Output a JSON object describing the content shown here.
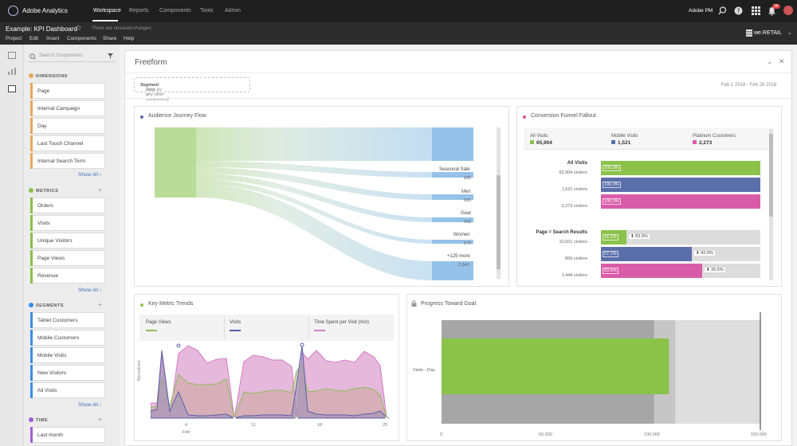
{
  "topnav": {
    "brand": "Adobe Analytics",
    "items": [
      "Workspace",
      "Reports",
      "Components",
      "Tools",
      "Admin"
    ],
    "user": "Adobe PM",
    "notif_count": "36"
  },
  "project": {
    "title": "Example: KPI Dashboard",
    "unsaved": "There are unsaved changes",
    "menu": [
      "Project",
      "Edit",
      "Insert",
      "Components",
      "Share",
      "Help"
    ],
    "report_suite": "we.RETAIL"
  },
  "search": {
    "placeholder": "Search Components"
  },
  "dimensions": {
    "title": "DIMENSIONS",
    "items": [
      "Page",
      "Internal Campaign",
      "Day",
      "Last Touch Channel",
      "Internal Search Term"
    ],
    "show_all": "Show All"
  },
  "metrics": {
    "title": "METRICS",
    "items": [
      "Orders",
      "Visits",
      "Unique Visitors",
      "Page Views",
      "Revenue"
    ],
    "show_all": "Show All"
  },
  "segments": {
    "title": "SEGMENTS",
    "items": [
      "Tablet Customers",
      "Mobile Customers",
      "Mobile Visits",
      "New Visitors",
      "All Visits"
    ],
    "show_all": "Show All"
  },
  "time": {
    "title": "TIME",
    "items": [
      "Last month"
    ]
  },
  "freeform": {
    "title": "Freeform",
    "drop_prefix": "Drop a ",
    "drop_bold": "Segment",
    "drop_suffix": " Here (or any other component)",
    "date_range": "Feb 1 2018 - Feb 28 2018"
  },
  "flow": {
    "title": "Audience Journey Flow",
    "nodes": [
      {
        "label": "Seasonal Sale",
        "value": "845"
      },
      {
        "label": "Men",
        "value": "695"
      },
      {
        "label": "Gear",
        "value": "658"
      },
      {
        "label": "Women",
        "value": "570"
      },
      {
        "label": "+125 more",
        "value": "2,943"
      }
    ]
  },
  "funnel": {
    "title": "Conversion Funnel Fallout",
    "columns": [
      {
        "name": "All Visits",
        "value": "65,904",
        "color": "#8ac24a"
      },
      {
        "name": "Mobile Visits",
        "value": "1,521",
        "color": "#5a6eaa"
      },
      {
        "name": "Platinum Customers",
        "value": "2,273",
        "color": "#d95ca8"
      }
    ],
    "step1": {
      "label": "All Visits",
      "rows": [
        "65,904 visitors",
        "1,521 visitors",
        "2,273 visitors"
      ],
      "pct": [
        "100.0%",
        "100.0%",
        "100.0%"
      ]
    },
    "step2": {
      "label": "Page = Search Results",
      "rows": [
        "10,601 visitors",
        "869 visitors",
        "1,444 visitors"
      ],
      "pct": [
        "16.1%",
        "57.1%",
        "63.5%"
      ],
      "drop": [
        "83.9%",
        "42.9%",
        "36.5%"
      ],
      "fill": [
        0.161,
        0.571,
        0.635
      ]
    }
  },
  "trends": {
    "title": "Key Metric Trends",
    "legend": [
      "Page Views",
      "Visits",
      "Time Spent per Visit (min)"
    ],
    "ylabel": "Normalized",
    "xticks": [
      "4",
      "11",
      "18",
      "25"
    ],
    "xsub": "Feb",
    "colors": {
      "pageviews": "#8fbf5a",
      "visits": "#5a5ea8",
      "time": "#d27cc3"
    }
  },
  "chart_data": {
    "type": "bar",
    "title": "Progress Toward Goal",
    "categories": [
      "Visits - Day"
    ],
    "values": [
      107000
    ],
    "xlim": [
      0,
      150000
    ],
    "xticks": [
      "0",
      "50,000",
      "100,000",
      "150,000"
    ],
    "bands": [
      100000,
      110000,
      150000
    ]
  }
}
